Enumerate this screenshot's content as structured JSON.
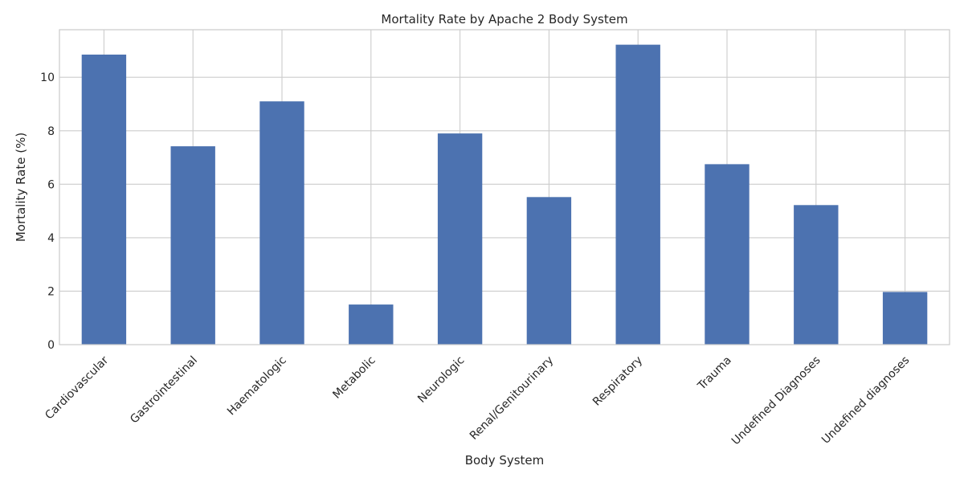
{
  "chart_data": {
    "type": "bar",
    "title": "Mortality Rate by Apache 2 Body System",
    "xlabel": "Body System",
    "ylabel": "Mortality Rate (%)",
    "categories": [
      "Cardiovascular",
      "Gastrointestinal",
      "Haematologic",
      "Metabolic",
      "Neurologic",
      "Renal/Genitourinary",
      "Respiratory",
      "Trauma",
      "Undefined Diagnoses",
      "Undefined diagnoses"
    ],
    "values": [
      10.85,
      7.42,
      9.1,
      1.5,
      7.9,
      5.52,
      11.22,
      6.75,
      5.22,
      1.97
    ],
    "yticks": [
      0,
      2,
      4,
      6,
      8,
      10
    ],
    "ylim": [
      0,
      11.78
    ],
    "grid": true,
    "colors": {
      "bar": "#4c72b0",
      "grid": "#cccccc",
      "text": "#262626",
      "background": "#ffffff"
    }
  }
}
